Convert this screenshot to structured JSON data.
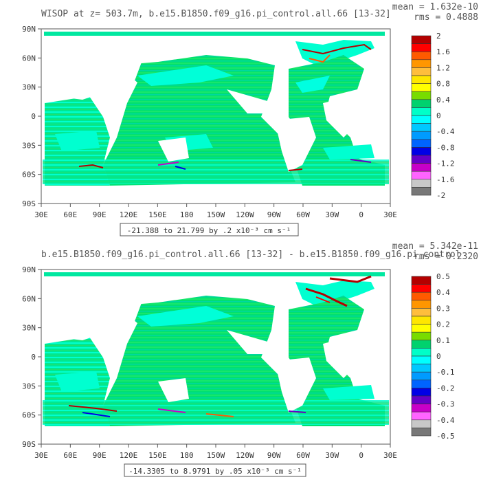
{
  "panels": [
    {
      "title": "WISOP at z= 503.7m, b.e15.B1850.f09_g16.pi_control.all.66 [13-32]",
      "mean_text": "mean = 1.632e-10",
      "rms_text": "rms = 0.4888",
      "range_text": "-21.388 to 21.799 by .2 x10⁻³ cm s⁻¹",
      "colorbar_labels": [
        "2",
        "1.6",
        "1.2",
        "0.8",
        "0.4",
        "0",
        "-0.4",
        "-0.8",
        "-1.2",
        "-1.6",
        "-2"
      ]
    },
    {
      "title": "b.e15.B1850.f09_g16.pi_control.all.66 [13-32] - b.e15.B1850.f09_g16.pi_control",
      "mean_text": "mean = 5.342e-11",
      "rms_text": "rms = 0.2320",
      "range_text": "-14.3305 to 8.9791 by .05 x10⁻³ cm s⁻¹",
      "colorbar_labels": [
        "0.5",
        "0.4",
        "0.3",
        "0.2",
        "0.1",
        "0",
        "-0.1",
        "-0.2",
        "-0.3",
        "-0.4",
        "-0.5"
      ]
    }
  ],
  "x_tick_labels": [
    "30E",
    "60E",
    "90E",
    "120E",
    "150E",
    "180",
    "150W",
    "120W",
    "90W",
    "60W",
    "30W",
    "0",
    "30E"
  ],
  "y_tick_labels": [
    "90N",
    "60N",
    "30N",
    "0",
    "30S",
    "60S",
    "90S"
  ],
  "colorbar_colors": [
    "#ffffff",
    "#b40000",
    "#ff0000",
    "#ff5a00",
    "#ff9600",
    "#ffbe3c",
    "#ffe600",
    "#ffff00",
    "#78dc00",
    "#00d26e",
    "#00ffc8",
    "#00ffff",
    "#00c8ff",
    "#009bff",
    "#0064ff",
    "#0000e6",
    "#6400c8",
    "#c800c8",
    "#ff64ff",
    "#c8c8c8",
    "#787878"
  ],
  "chart_data": [
    {
      "type": "heatmap",
      "title": "WISOP at z= 503.7m, b.e15.B1850.f09_g16.pi_control.all.66 [13-32]",
      "x_range": [
        "30E",
        "30E"
      ],
      "y_range": [
        "90S",
        "90N"
      ],
      "levels": [
        -2,
        -1.8,
        -1.6,
        -1.4,
        -1.2,
        -1,
        -0.8,
        -0.6,
        -0.4,
        -0.2,
        0,
        0.2,
        0.4,
        0.6,
        0.8,
        1,
        1.2,
        1.4,
        1.6,
        1.8,
        2
      ],
      "mean": 1.632e-10,
      "rms": 0.4888,
      "min": -21.388,
      "max": 21.799
    },
    {
      "type": "heatmap",
      "title": "b.e15.B1850.f09_g16.pi_control.all.66 [13-32] - b.e15.B1850.f09_g16.pi_control",
      "x_range": [
        "30E",
        "30E"
      ],
      "y_range": [
        "90S",
        "90N"
      ],
      "levels": [
        -0.5,
        -0.45,
        -0.4,
        -0.35,
        -0.3,
        -0.25,
        -0.2,
        -0.15,
        -0.1,
        -0.05,
        0,
        0.05,
        0.1,
        0.15,
        0.2,
        0.25,
        0.3,
        0.35,
        0.4,
        0.45,
        0.5
      ],
      "mean": 5.342e-11,
      "rms": 0.232,
      "min": -14.3305,
      "max": 8.9791
    }
  ]
}
